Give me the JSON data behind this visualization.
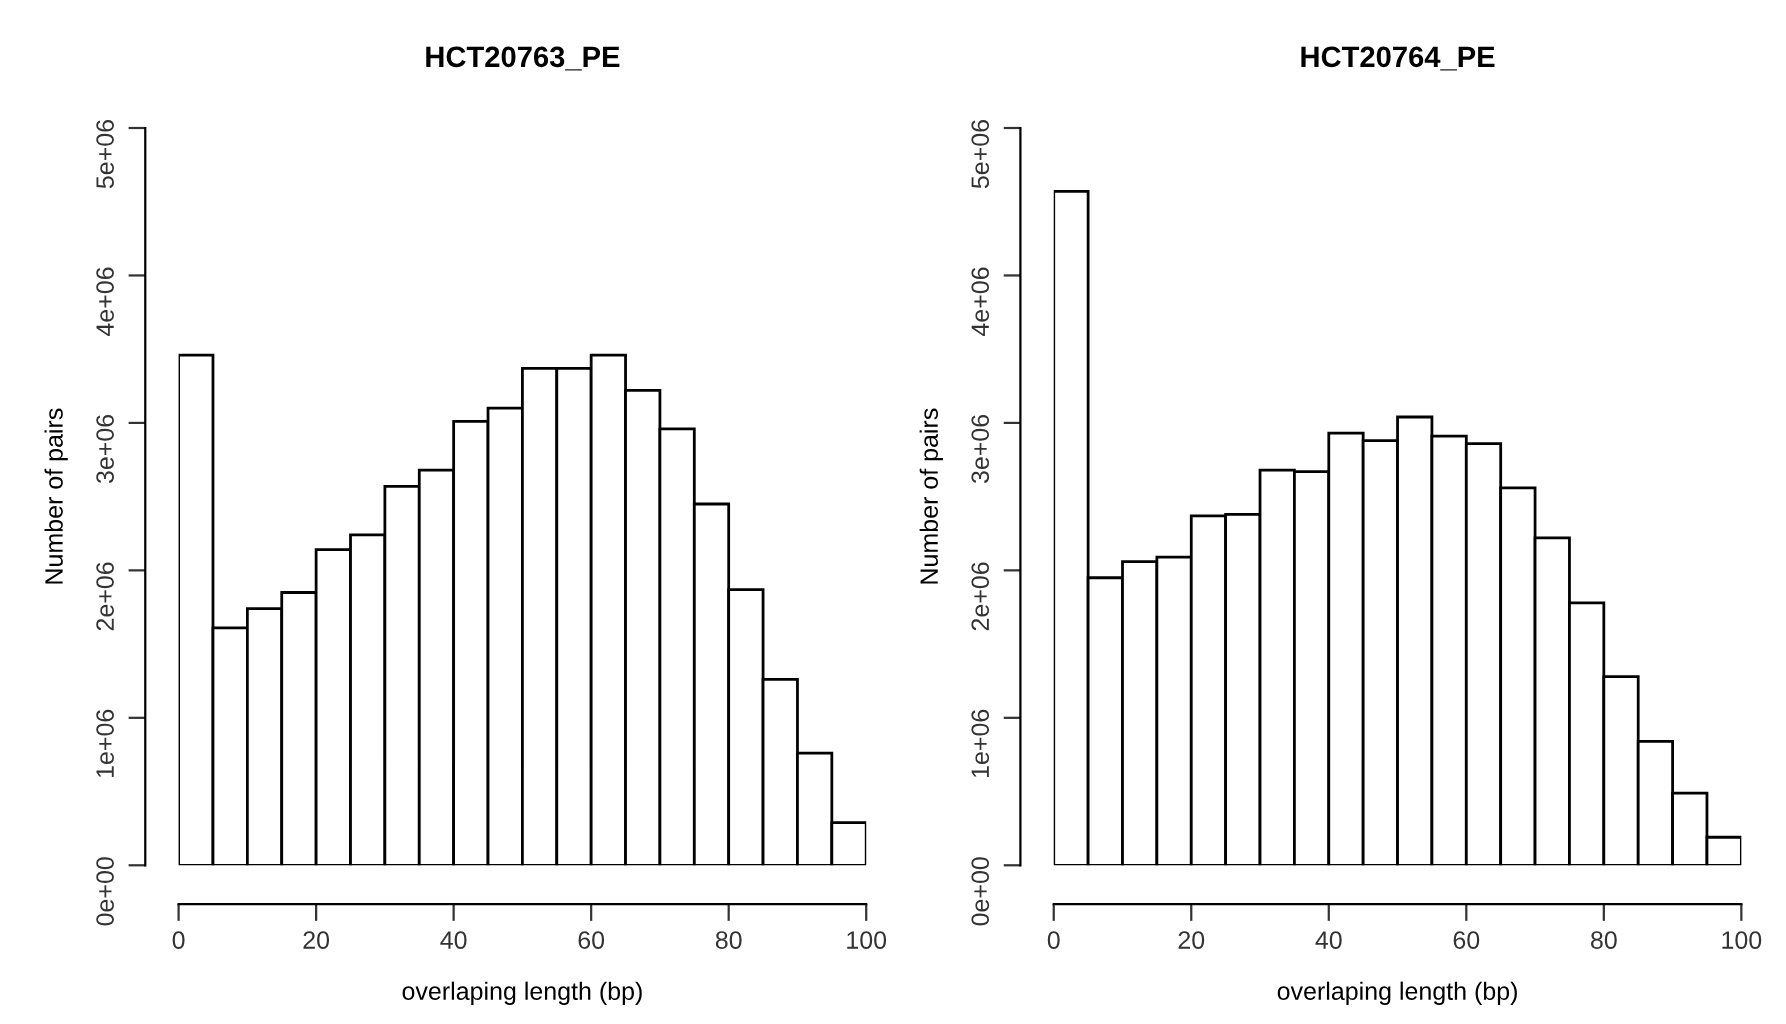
{
  "chart_data": [
    {
      "type": "histogram",
      "title": "HCT20763_PE",
      "xlabel": "overlaping length (bp)",
      "ylabel": "Number of pairs",
      "color": "#ffffff",
      "bins": [
        0,
        5,
        10,
        15,
        20,
        25,
        30,
        35,
        40,
        45,
        50,
        55,
        60,
        65,
        70,
        75,
        80,
        85,
        90,
        95,
        100
      ],
      "values": [
        3460000,
        1610000,
        1740000,
        1850000,
        2140000,
        2240000,
        2570000,
        2680000,
        3010000,
        3100000,
        3370000,
        3370000,
        3460000,
        3220000,
        2960000,
        2450000,
        1870000,
        1260000,
        760000,
        290000
      ],
      "xlim": [
        0,
        100
      ],
      "xticks": [
        0,
        20,
        40,
        60,
        80,
        100
      ],
      "ylim": [
        0,
        5000000
      ],
      "yticks": [
        {
          "value": 0,
          "label": "0e+00"
        },
        {
          "value": 1000000,
          "label": "1e+06"
        },
        {
          "value": 2000000,
          "label": "2e+06"
        },
        {
          "value": 3000000,
          "label": "3e+06"
        },
        {
          "value": 4000000,
          "label": "4e+06"
        },
        {
          "value": 5000000,
          "label": "5e+06"
        }
      ],
      "grid": false,
      "legend": false
    },
    {
      "type": "histogram",
      "title": "HCT20764_PE",
      "xlabel": "overlaping length (bp)",
      "ylabel": "Number of pairs",
      "color": "#ffffff",
      "bins": [
        0,
        5,
        10,
        15,
        20,
        25,
        30,
        35,
        40,
        45,
        50,
        55,
        60,
        65,
        70,
        75,
        80,
        85,
        90,
        95,
        100
      ],
      "values": [
        4570000,
        1950000,
        2060000,
        2090000,
        2370000,
        2380000,
        2680000,
        2670000,
        2930000,
        2880000,
        3040000,
        2910000,
        2860000,
        2560000,
        2220000,
        1780000,
        1280000,
        840000,
        490000,
        190000
      ],
      "xlim": [
        0,
        100
      ],
      "xticks": [
        0,
        20,
        40,
        60,
        80,
        100
      ],
      "ylim": [
        0,
        5000000
      ],
      "yticks": [
        {
          "value": 0,
          "label": "0e+00"
        },
        {
          "value": 1000000,
          "label": "1e+06"
        },
        {
          "value": 2000000,
          "label": "2e+06"
        },
        {
          "value": 3000000,
          "label": "3e+06"
        },
        {
          "value": 4000000,
          "label": "4e+06"
        },
        {
          "value": 5000000,
          "label": "5e+06"
        }
      ],
      "grid": false,
      "legend": false
    }
  ]
}
